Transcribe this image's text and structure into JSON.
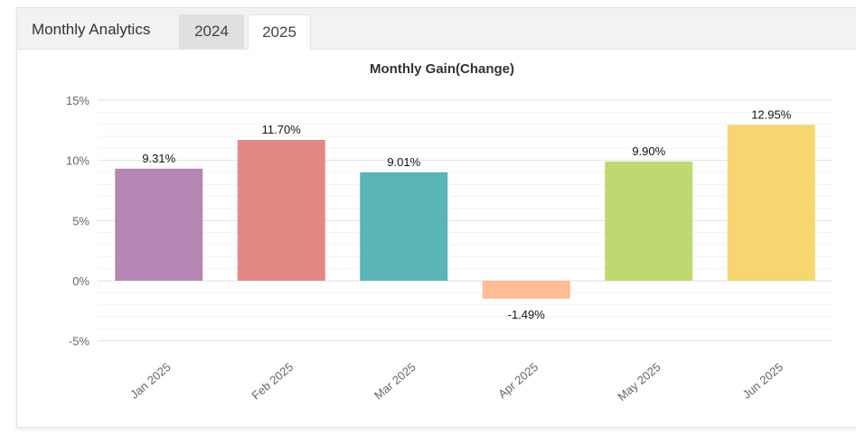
{
  "header": {
    "title": "Monthly Analytics",
    "tabs": [
      {
        "label": "2024",
        "active": false
      },
      {
        "label": "2025",
        "active": true
      }
    ]
  },
  "chart_data": {
    "type": "bar",
    "title": "Monthly Gain(Change)",
    "xlabel": "",
    "ylabel": "",
    "ylim": [
      -5,
      15
    ],
    "yticks": [
      15,
      10,
      5,
      0,
      -5
    ],
    "ytick_labels": [
      "15%",
      "10%",
      "5%",
      "0%",
      "-5%"
    ],
    "grid": true,
    "categories": [
      "Jan 2025",
      "Feb 2025",
      "Mar 2025",
      "Apr 2025",
      "May 2025",
      "Jun 2025"
    ],
    "values": [
      9.31,
      11.7,
      9.01,
      -1.49,
      9.9,
      12.95
    ],
    "data_labels": [
      "9.31%",
      "11.70%",
      "9.01%",
      "-1.49%",
      "9.90%",
      "12.95%"
    ],
    "colors": [
      "#b586b4",
      "#e38885",
      "#5bb5b6",
      "#ffbc95",
      "#bed970",
      "#f6d671"
    ]
  }
}
